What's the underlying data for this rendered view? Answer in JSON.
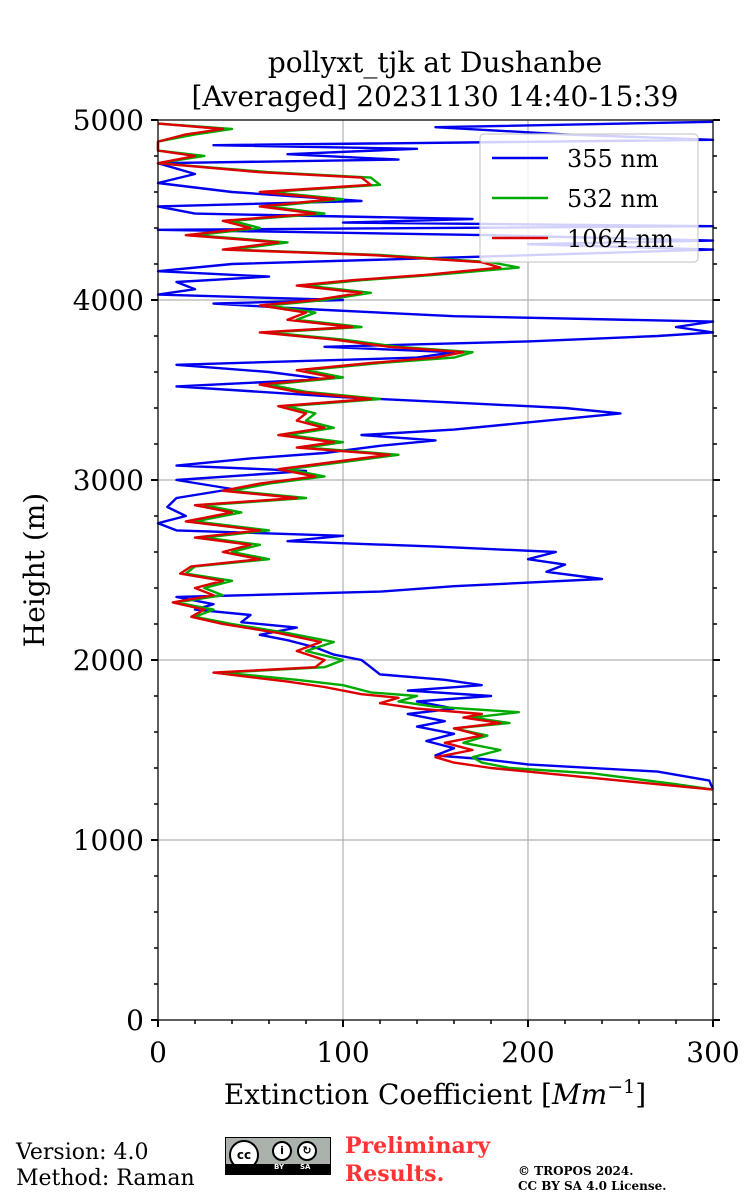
{
  "chart_data": {
    "type": "line",
    "title": "pollyxt_tjk at Dushanbe",
    "subtitle": "[Averaged] 20231130 14:40-15:39",
    "xlabel": "Extinction Coefficient [",
    "xlabel_unit": "Mm",
    "xlabel_exp": "−1",
    "xlabel_end": "]",
    "ylabel": "Height (m)",
    "xlim": [
      0,
      300
    ],
    "ylim": [
      0,
      5000
    ],
    "xticks": [
      "0",
      "100",
      "200",
      "300"
    ],
    "yticks": [
      "0",
      "1000",
      "2000",
      "3000",
      "4000",
      "5000"
    ],
    "grid": true,
    "legend_position": "top-right",
    "series": [
      {
        "name": "355 nm",
        "color": "#0000ee",
        "points": [
          [
            300,
            1280
          ],
          [
            298,
            1330
          ],
          [
            270,
            1380
          ],
          [
            200,
            1420
          ],
          [
            175,
            1450
          ],
          [
            150,
            1470
          ],
          [
            160,
            1510
          ],
          [
            145,
            1550
          ],
          [
            160,
            1590
          ],
          [
            140,
            1630
          ],
          [
            155,
            1660
          ],
          [
            135,
            1700
          ],
          [
            160,
            1730
          ],
          [
            140,
            1770
          ],
          [
            180,
            1800
          ],
          [
            135,
            1830
          ],
          [
            175,
            1860
          ],
          [
            155,
            1890
          ],
          [
            120,
            1920
          ],
          [
            115,
            1960
          ],
          [
            110,
            2000
          ],
          [
            95,
            2030
          ],
          [
            85,
            2070
          ],
          [
            70,
            2110
          ],
          [
            55,
            2140
          ],
          [
            75,
            2180
          ],
          [
            45,
            2210
          ],
          [
            50,
            2250
          ],
          [
            20,
            2280
          ],
          [
            30,
            2310
          ],
          [
            10,
            2350
          ],
          [
            120,
            2380
          ],
          [
            160,
            2410
          ],
          [
            240,
            2450
          ],
          [
            210,
            2490
          ],
          [
            220,
            2530
          ],
          [
            200,
            2560
          ],
          [
            215,
            2600
          ],
          [
            150,
            2630
          ],
          [
            70,
            2660
          ],
          [
            100,
            2690
          ],
          [
            10,
            2720
          ],
          [
            0,
            2760
          ],
          [
            15,
            2800
          ],
          [
            5,
            2850
          ],
          [
            10,
            2900
          ],
          [
            40,
            2950
          ],
          [
            10,
            3000
          ],
          [
            80,
            3050
          ],
          [
            10,
            3080
          ],
          [
            50,
            3120
          ],
          [
            90,
            3150
          ],
          [
            120,
            3190
          ],
          [
            150,
            3220
          ],
          [
            110,
            3250
          ],
          [
            160,
            3280
          ],
          [
            190,
            3310
          ],
          [
            250,
            3370
          ],
          [
            220,
            3400
          ],
          [
            160,
            3430
          ],
          [
            100,
            3460
          ],
          [
            40,
            3500
          ],
          [
            10,
            3520
          ],
          [
            90,
            3560
          ],
          [
            60,
            3600
          ],
          [
            10,
            3640
          ],
          [
            140,
            3680
          ],
          [
            160,
            3710
          ],
          [
            90,
            3740
          ],
          [
            200,
            3770
          ],
          [
            270,
            3800
          ],
          [
            300,
            3820
          ],
          [
            280,
            3850
          ],
          [
            300,
            3880
          ],
          [
            160,
            3910
          ],
          [
            80,
            3950
          ],
          [
            30,
            3980
          ],
          [
            100,
            4000
          ],
          [
            0,
            4030
          ],
          [
            20,
            4060
          ],
          [
            10,
            4100
          ],
          [
            60,
            4130
          ],
          [
            0,
            4160
          ],
          [
            40,
            4200
          ],
          [
            140,
            4230
          ],
          [
            300,
            4280
          ],
          [
            200,
            4310
          ],
          [
            300,
            4330
          ],
          [
            180,
            4360
          ],
          [
            0,
            4390
          ],
          [
            300,
            4410
          ],
          [
            100,
            4430
          ],
          [
            170,
            4450
          ],
          [
            20,
            4480
          ],
          [
            0,
            4520
          ],
          [
            110,
            4550
          ],
          [
            40,
            4600
          ],
          [
            0,
            4650
          ],
          [
            20,
            4700
          ],
          [
            0,
            4760
          ],
          [
            130,
            4780
          ],
          [
            70,
            4810
          ],
          [
            140,
            4840
          ],
          [
            30,
            4860
          ],
          [
            300,
            4890
          ],
          [
            220,
            4920
          ],
          [
            150,
            4960
          ],
          [
            300,
            4990
          ]
        ]
      },
      {
        "name": "532 nm",
        "color": "#00aa00",
        "points": [
          [
            300,
            1280
          ],
          [
            280,
            1310
          ],
          [
            235,
            1370
          ],
          [
            190,
            1400
          ],
          [
            175,
            1430
          ],
          [
            170,
            1460
          ],
          [
            185,
            1500
          ],
          [
            165,
            1540
          ],
          [
            178,
            1580
          ],
          [
            160,
            1620
          ],
          [
            190,
            1650
          ],
          [
            170,
            1680
          ],
          [
            195,
            1710
          ],
          [
            150,
            1740
          ],
          [
            130,
            1770
          ],
          [
            140,
            1800
          ],
          [
            115,
            1820
          ],
          [
            100,
            1860
          ],
          [
            75,
            1890
          ],
          [
            35,
            1930
          ],
          [
            90,
            1960
          ],
          [
            100,
            2000
          ],
          [
            80,
            2050
          ],
          [
            95,
            2100
          ],
          [
            70,
            2150
          ],
          [
            40,
            2200
          ],
          [
            20,
            2240
          ],
          [
            30,
            2280
          ],
          [
            10,
            2320
          ],
          [
            35,
            2360
          ],
          [
            25,
            2400
          ],
          [
            40,
            2440
          ],
          [
            15,
            2480
          ],
          [
            20,
            2520
          ],
          [
            60,
            2560
          ],
          [
            40,
            2600
          ],
          [
            55,
            2640
          ],
          [
            25,
            2680
          ],
          [
            60,
            2720
          ],
          [
            20,
            2770
          ],
          [
            45,
            2820
          ],
          [
            25,
            2860
          ],
          [
            80,
            2900
          ],
          [
            40,
            2940
          ],
          [
            60,
            2980
          ],
          [
            90,
            3020
          ],
          [
            70,
            3060
          ],
          [
            100,
            3100
          ],
          [
            130,
            3140
          ],
          [
            80,
            3180
          ],
          [
            100,
            3210
          ],
          [
            70,
            3250
          ],
          [
            95,
            3290
          ],
          [
            80,
            3330
          ],
          [
            85,
            3370
          ],
          [
            70,
            3410
          ],
          [
            120,
            3450
          ],
          [
            80,
            3490
          ],
          [
            60,
            3530
          ],
          [
            100,
            3570
          ],
          [
            80,
            3610
          ],
          [
            120,
            3650
          ],
          [
            160,
            3680
          ],
          [
            170,
            3710
          ],
          [
            130,
            3740
          ],
          [
            100,
            3780
          ],
          [
            60,
            3820
          ],
          [
            110,
            3850
          ],
          [
            75,
            3890
          ],
          [
            85,
            3930
          ],
          [
            60,
            3970
          ],
          [
            90,
            4000
          ],
          [
            115,
            4040
          ],
          [
            80,
            4080
          ],
          [
            110,
            4110
          ],
          [
            150,
            4140
          ],
          [
            195,
            4180
          ],
          [
            180,
            4210
          ],
          [
            120,
            4250
          ],
          [
            40,
            4280
          ],
          [
            70,
            4320
          ],
          [
            20,
            4360
          ],
          [
            55,
            4400
          ],
          [
            40,
            4440
          ],
          [
            90,
            4480
          ],
          [
            60,
            4520
          ],
          [
            100,
            4560
          ],
          [
            60,
            4600
          ],
          [
            120,
            4640
          ],
          [
            115,
            4680
          ],
          [
            60,
            4710
          ],
          [
            0,
            4760
          ],
          [
            25,
            4800
          ],
          [
            0,
            4830
          ],
          [
            0,
            4880
          ],
          [
            20,
            4920
          ],
          [
            40,
            4950
          ],
          [
            0,
            4980
          ]
        ]
      },
      {
        "name": "1064 nm",
        "color": "#dd0000",
        "points": [
          [
            300,
            1280
          ],
          [
            260,
            1320
          ],
          [
            220,
            1360
          ],
          [
            180,
            1400
          ],
          [
            160,
            1430
          ],
          [
            150,
            1460
          ],
          [
            170,
            1500
          ],
          [
            155,
            1540
          ],
          [
            175,
            1580
          ],
          [
            160,
            1620
          ],
          [
            185,
            1650
          ],
          [
            165,
            1680
          ],
          [
            175,
            1700
          ],
          [
            140,
            1730
          ],
          [
            120,
            1760
          ],
          [
            130,
            1790
          ],
          [
            110,
            1810
          ],
          [
            90,
            1850
          ],
          [
            70,
            1880
          ],
          [
            30,
            1930
          ],
          [
            85,
            1960
          ],
          [
            90,
            2000
          ],
          [
            75,
            2050
          ],
          [
            88,
            2100
          ],
          [
            65,
            2150
          ],
          [
            35,
            2200
          ],
          [
            18,
            2240
          ],
          [
            25,
            2280
          ],
          [
            8,
            2320
          ],
          [
            30,
            2360
          ],
          [
            20,
            2400
          ],
          [
            35,
            2440
          ],
          [
            12,
            2480
          ],
          [
            18,
            2520
          ],
          [
            55,
            2560
          ],
          [
            35,
            2600
          ],
          [
            50,
            2640
          ],
          [
            20,
            2680
          ],
          [
            55,
            2720
          ],
          [
            15,
            2770
          ],
          [
            40,
            2820
          ],
          [
            20,
            2860
          ],
          [
            75,
            2900
          ],
          [
            35,
            2940
          ],
          [
            55,
            2980
          ],
          [
            85,
            3020
          ],
          [
            65,
            3060
          ],
          [
            95,
            3100
          ],
          [
            125,
            3140
          ],
          [
            75,
            3180
          ],
          [
            95,
            3210
          ],
          [
            65,
            3250
          ],
          [
            90,
            3290
          ],
          [
            75,
            3330
          ],
          [
            80,
            3370
          ],
          [
            65,
            3410
          ],
          [
            115,
            3450
          ],
          [
            75,
            3490
          ],
          [
            55,
            3530
          ],
          [
            95,
            3570
          ],
          [
            75,
            3610
          ],
          [
            115,
            3650
          ],
          [
            150,
            3680
          ],
          [
            165,
            3710
          ],
          [
            125,
            3740
          ],
          [
            95,
            3780
          ],
          [
            55,
            3820
          ],
          [
            105,
            3850
          ],
          [
            70,
            3890
          ],
          [
            80,
            3930
          ],
          [
            55,
            3970
          ],
          [
            85,
            4000
          ],
          [
            110,
            4040
          ],
          [
            75,
            4080
          ],
          [
            105,
            4110
          ],
          [
            145,
            4140
          ],
          [
            185,
            4180
          ],
          [
            175,
            4210
          ],
          [
            115,
            4250
          ],
          [
            35,
            4280
          ],
          [
            65,
            4320
          ],
          [
            15,
            4360
          ],
          [
            50,
            4400
          ],
          [
            35,
            4440
          ],
          [
            85,
            4480
          ],
          [
            55,
            4520
          ],
          [
            95,
            4560
          ],
          [
            55,
            4600
          ],
          [
            115,
            4640
          ],
          [
            110,
            4680
          ],
          [
            55,
            4710
          ],
          [
            0,
            4760
          ],
          [
            20,
            4800
          ],
          [
            0,
            4830
          ],
          [
            0,
            4880
          ],
          [
            15,
            4920
          ],
          [
            35,
            4950
          ],
          [
            0,
            4980
          ]
        ]
      }
    ]
  },
  "footer": {
    "version": "Version: 4.0",
    "method": "Method: Raman",
    "badge_by": "BY",
    "badge_sa": "SA",
    "preliminary_line1": "Preliminary",
    "preliminary_line2": "Results.",
    "copyright_line1": "© TROPOS 2024.",
    "copyright_line2": "CC BY SA 4.0 License."
  }
}
